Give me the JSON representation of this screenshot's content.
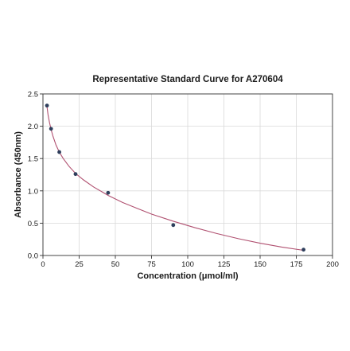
{
  "chart_data": {
    "type": "scatter",
    "title": "Representative Standard Curve for A270604",
    "xlabel": "Concentration (μmol/ml)",
    "ylabel": "Absorbance (450nm)",
    "xlim": [
      0,
      200
    ],
    "ylim": [
      0,
      2.5
    ],
    "xticks": [
      0,
      25,
      50,
      75,
      100,
      125,
      150,
      175,
      200
    ],
    "yticks": [
      0.0,
      0.5,
      1.0,
      1.5,
      2.0,
      2.5
    ],
    "xtick_labels": [
      "0",
      "25",
      "50",
      "75",
      "100",
      "125",
      "150",
      "175",
      "200"
    ],
    "ytick_labels": [
      "0.0",
      "0.5",
      "1.0",
      "1.5",
      "2.0",
      "2.5"
    ],
    "grid": true,
    "series": [
      {
        "points": [
          {
            "x": 2.8,
            "y": 2.32
          },
          {
            "x": 5.6,
            "y": 1.96
          },
          {
            "x": 11.3,
            "y": 1.6
          },
          {
            "x": 22.5,
            "y": 1.26
          },
          {
            "x": 45,
            "y": 0.97
          },
          {
            "x": 90,
            "y": 0.47
          },
          {
            "x": 180,
            "y": 0.09
          }
        ]
      }
    ],
    "curve": {
      "x": [
        2.8,
        3.5,
        4.5,
        5.6,
        7,
        9,
        11.3,
        14,
        18,
        22.5,
        28,
        35,
        45,
        55,
        65,
        75,
        90,
        105,
        120,
        135,
        150,
        165,
        180
      ],
      "y": [
        2.3,
        2.18,
        2.06,
        1.95,
        1.84,
        1.71,
        1.6,
        1.5,
        1.38,
        1.27,
        1.17,
        1.06,
        0.93,
        0.82,
        0.73,
        0.64,
        0.53,
        0.43,
        0.34,
        0.26,
        0.19,
        0.13,
        0.08
      ]
    },
    "colors": {
      "curve": "#b05070",
      "point": "#2e3f5c",
      "grid": "#d9d9d9",
      "axis": "#333333"
    }
  }
}
